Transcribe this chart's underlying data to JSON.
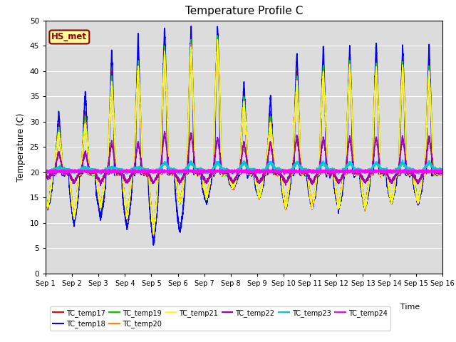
{
  "title": "Temperature Profile C",
  "xlabel": "Time",
  "ylabel": "Temperature (C)",
  "ylim": [
    0,
    50
  ],
  "xlim": [
    0,
    15
  ],
  "background_color": "#dcdcdc",
  "annotation_text": "HS_met",
  "annotation_color": "#8b0000",
  "annotation_bg": "#ffff99",
  "series": [
    {
      "name": "TC_temp17",
      "color": "#ff0000"
    },
    {
      "name": "TC_temp18",
      "color": "#0000ff"
    },
    {
      "name": "TC_temp19",
      "color": "#00cc00"
    },
    {
      "name": "TC_temp20",
      "color": "#ff8800"
    },
    {
      "name": "TC_temp21",
      "color": "#ffff00"
    },
    {
      "name": "TC_temp22",
      "color": "#aa00aa"
    },
    {
      "name": "TC_temp23",
      "color": "#00cccc"
    },
    {
      "name": "TC_temp24",
      "color": "#ff00ff"
    }
  ],
  "xtick_labels": [
    "Sep 1",
    "Sep 2",
    "Sep 3",
    "Sep 4",
    "Sep 5",
    "Sep 6",
    "Sep 7",
    "Sep 8",
    "Sep 9",
    "Sep 10",
    "Sep 11",
    "Sep 12",
    "Sep 13",
    "Sep 14",
    "Sep 15",
    "Sep 16"
  ],
  "ytick_values": [
    0,
    5,
    10,
    15,
    20,
    25,
    30,
    35,
    40,
    45,
    50
  ],
  "peak_times": [
    0.5,
    1.5,
    2.5,
    3.5,
    4.5,
    5.5,
    6.5,
    7.5,
    8.5,
    9.5,
    10.5,
    11.5,
    12.5,
    13.5,
    14.5
  ],
  "peak_heights_18": [
    32,
    36,
    44,
    47,
    49,
    49,
    49,
    38,
    35,
    44,
    45,
    45,
    46,
    45,
    45
  ],
  "trough_heights_18": [
    13,
    10,
    11,
    9,
    6,
    8,
    14,
    17,
    15,
    13,
    13,
    13,
    13,
    14,
    14
  ],
  "peak_heights_main": [
    30,
    32,
    40,
    43,
    46,
    47,
    48,
    36,
    32,
    40,
    42,
    43,
    43,
    43,
    42
  ],
  "trough_heights_main": [
    13,
    11,
    13,
    11,
    8,
    14,
    15,
    17,
    15,
    13,
    13,
    13,
    13,
    14,
    14
  ],
  "peak_heights_22": [
    24,
    24,
    26,
    26,
    28,
    28,
    27,
    26,
    26,
    27,
    27,
    27,
    27,
    27,
    27
  ],
  "trough_heights_22": [
    19,
    18,
    18,
    18,
    18,
    18,
    18,
    18,
    18,
    18,
    18,
    18,
    18,
    18,
    18
  ],
  "peak_heights_23": [
    21,
    21,
    21,
    21,
    22,
    22,
    22,
    22,
    22,
    22,
    22,
    22,
    22,
    22,
    22
  ],
  "trough_heights_23": [
    20,
    20,
    20,
    20,
    20,
    20,
    20,
    20,
    20,
    20,
    20,
    20,
    20,
    20,
    20
  ],
  "flat_24": 20.2
}
